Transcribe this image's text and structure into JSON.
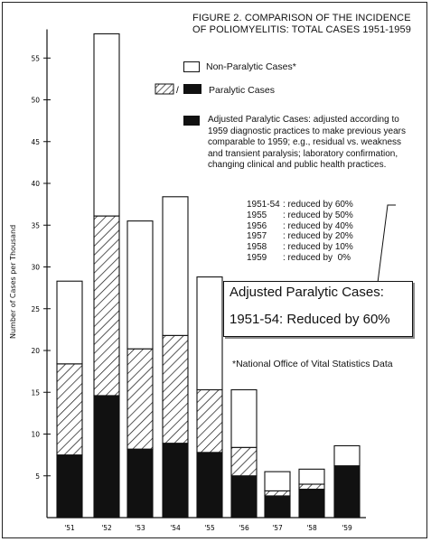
{
  "chart_data": {
    "type": "bar",
    "title": "FIGURE 2. COMPARISON OF THE INCIDENCE OF POLIOMYELITIS: TOTAL CASES 1951-1959",
    "ylabel": "Number of Cases per Thousand",
    "xlabel": "",
    "ylim": [
      0,
      58
    ],
    "yticks": [
      5,
      10,
      15,
      20,
      25,
      30,
      35,
      40,
      45,
      50,
      55
    ],
    "categories": [
      "'51",
      "'52",
      "'53",
      "'54",
      "'55",
      "'56",
      "'57",
      "'58",
      "'59"
    ],
    "stacked": true,
    "series": [
      {
        "name": "Adjusted Paralytic Cases",
        "color": "#111111",
        "pattern": "solid",
        "values": [
          7.5,
          14.6,
          8.2,
          8.9,
          7.8,
          5.0,
          2.6,
          3.4,
          6.2
        ]
      },
      {
        "name": "Paralytic Cases",
        "color": "#111111",
        "pattern": "hatched",
        "values": [
          10.9,
          21.5,
          12.0,
          12.9,
          7.5,
          3.4,
          0.6,
          0.6,
          0
        ]
      },
      {
        "name": "Non-Paralytic Cases",
        "color": "#ffffff",
        "pattern": "white",
        "values": [
          9.9,
          21.8,
          15.3,
          16.6,
          13.5,
          6.9,
          2.3,
          1.8,
          2.4
        ]
      }
    ],
    "totals": [
      28.3,
      57.9,
      35.5,
      38.4,
      28.8,
      15.3,
      5.5,
      5.8,
      8.6
    ],
    "legend": {
      "non_paralytic": "Non-Paralytic Cases*",
      "paralytic": "Paralytic Cases",
      "paralytic_sep": "/",
      "adjusted": "Adjusted Paralytic Cases: adjusted according to 1959 diagnostic practices to make previous years comparable to 1959; e.g., residual vs. weakness and transient paralysis; laboratory confirmation, changing clinical and public health practices."
    },
    "annotations": {
      "reductions": [
        {
          "year": "1951-54",
          "text": ": reduced by 60%"
        },
        {
          "year": "1955",
          "text": ": reduced by 50%"
        },
        {
          "year": "1956",
          "text": ": reduced by 40%"
        },
        {
          "year": "1957",
          "text": ": reduced by 20%"
        },
        {
          "year": "1958",
          "text": ": reduced by 10%"
        },
        {
          "year": "1959",
          "text": ": reduced by  0%"
        }
      ],
      "callout_line1": "Adjusted Paralytic Cases:",
      "callout_line2": "1951-54: Reduced by 60%",
      "source": "*National Office of Vital Statistics Data"
    }
  }
}
